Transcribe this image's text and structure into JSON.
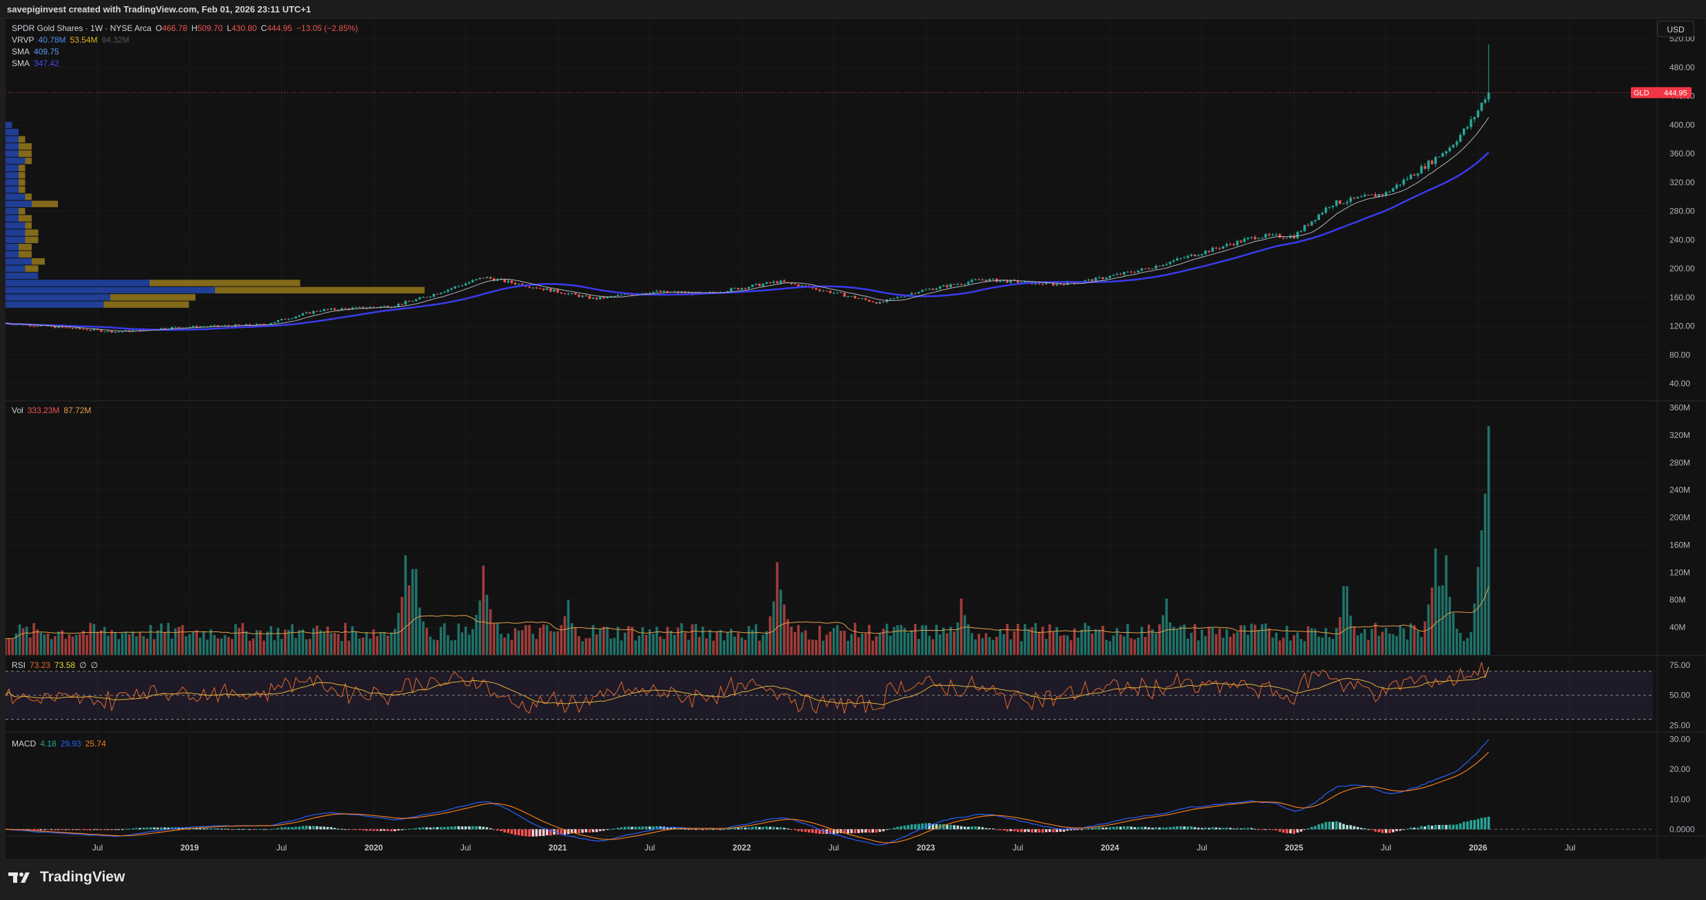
{
  "header": {
    "credit": "savepiginvest created with TradingView.com, Feb 01, 2026 23:11 UTC+1"
  },
  "currency_button": "USD",
  "legend": {
    "symbol": "SPDR Gold Shares · 1W · NYSE Arca",
    "ohlc": {
      "o_label": "O",
      "o": "466.78",
      "h_label": "H",
      "h": "509.70",
      "l_label": "L",
      "l": "430.80",
      "c_label": "C",
      "c": "444.95",
      "change": "−13.05 (−2.85%)"
    },
    "vrvp": {
      "label": "VRVP",
      "v1": "40.78M",
      "v2": "53.54M",
      "v3": "94.32M"
    },
    "sma1": {
      "label": "SMA",
      "value": "409.75"
    },
    "sma2": {
      "label": "SMA",
      "value": "347.42"
    }
  },
  "volume_legend": {
    "label": "Vol",
    "v1": "333.23M",
    "v2": "87.72M"
  },
  "rsi_legend": {
    "label": "RSI",
    "v1": "73.23",
    "v2": "73.58",
    "v3": "∅",
    "v4": "∅"
  },
  "macd_legend": {
    "label": "MACD",
    "v1": "4.18",
    "v2": "29.93",
    "v3": "25.74"
  },
  "price_tag": {
    "symbol": "GLD",
    "value": "444.95"
  },
  "branding": {
    "logo_text": "TradingView"
  },
  "colors": {
    "up": "#26a69a",
    "down": "#ef5350",
    "sma_fast": "#b2b5be",
    "sma_slow": "#3b3bf0",
    "vol_ma": "#e5a24a",
    "rsi_line": "#e56a2a",
    "rsi_ma": "#e5b43a",
    "macd": "#2962ff",
    "signal": "#f57c1f",
    "vrvp_up": "#2962ff",
    "vrvp_down": "#e0b020",
    "rsi_band": "#7e57c2"
  },
  "chart_data": [
    {
      "type": "candlestick",
      "title": "SPDR Gold Shares · 1W · NYSE Arca",
      "x_ticks": [
        "Jul",
        "2019",
        "Jul",
        "2020",
        "Jul",
        "2021",
        "Jul",
        "2022",
        "Jul",
        "2023",
        "Jul",
        "2024",
        "Jul",
        "2025",
        "Jul",
        "2026",
        "Jul"
      ],
      "y_ticks": [
        "40.00",
        "80.00",
        "120.00",
        "160.00",
        "200.00",
        "240.00",
        "280.00",
        "320.00",
        "360.00",
        "400.00",
        "440.00",
        "480.00",
        "520.00"
      ],
      "ylim": [
        18,
        548
      ],
      "last_price": 444.95,
      "close_anchors": {
        "x": [
          2018.0,
          2018.6,
          2018.9,
          2019.4,
          2019.7,
          2020.1,
          2020.25,
          2020.6,
          2020.8,
          2021.2,
          2021.5,
          2021.8,
          2022.2,
          2022.4,
          2022.75,
          2022.95,
          2023.3,
          2023.7,
          2023.9,
          2024.2,
          2024.4,
          2024.8,
          2025.0,
          2025.2,
          2025.5,
          2025.75,
          2025.85,
          2025.95,
          2026.0,
          2026.05
        ],
        "y": [
          124,
          112,
          118,
          122,
          142,
          148,
          158,
          188,
          178,
          158,
          168,
          165,
          182,
          172,
          152,
          168,
          185,
          178,
          184,
          200,
          215,
          245,
          245,
          290,
          305,
          350,
          370,
          400,
          420,
          445
        ]
      },
      "sma_fast_last": 409.75,
      "sma_slow_last": 347.42,
      "volume_profile": {
        "label": "VRVP",
        "rows": [
          {
            "price": 150,
            "up": 15,
            "down": 13
          },
          {
            "price": 160,
            "up": 16,
            "down": 13
          },
          {
            "price": 170,
            "up": 32,
            "down": 32
          },
          {
            "price": 180,
            "up": 22,
            "down": 23
          },
          {
            "price": 190,
            "up": 5,
            "down": 0
          },
          {
            "price": 200,
            "up": 3,
            "down": 2
          },
          {
            "price": 210,
            "up": 4,
            "down": 2
          },
          {
            "price": 220,
            "up": 2,
            "down": 2
          },
          {
            "price": 230,
            "up": 2,
            "down": 2
          },
          {
            "price": 240,
            "up": 3,
            "down": 2
          },
          {
            "price": 250,
            "up": 3,
            "down": 2
          },
          {
            "price": 260,
            "up": 3,
            "down": 1
          },
          {
            "price": 270,
            "up": 2,
            "down": 2
          },
          {
            "price": 280,
            "up": 2,
            "down": 1
          },
          {
            "price": 290,
            "up": 4,
            "down": 4
          },
          {
            "price": 300,
            "up": 3,
            "down": 1
          },
          {
            "price": 310,
            "up": 2,
            "down": 1
          },
          {
            "price": 320,
            "up": 2,
            "down": 1
          },
          {
            "price": 330,
            "up": 2,
            "down": 1
          },
          {
            "price": 340,
            "up": 2,
            "down": 1
          },
          {
            "price": 350,
            "up": 3,
            "down": 1
          },
          {
            "price": 360,
            "up": 2,
            "down": 2
          },
          {
            "price": 370,
            "up": 2,
            "down": 2
          },
          {
            "price": 380,
            "up": 2,
            "down": 1
          },
          {
            "price": 390,
            "up": 2,
            "down": 0
          },
          {
            "price": 400,
            "up": 1,
            "down": 0
          }
        ]
      }
    },
    {
      "type": "bar",
      "title": "Vol",
      "y_ticks": [
        "40M",
        "80M",
        "120M",
        "160M",
        "200M",
        "240M",
        "280M",
        "320M",
        "360M"
      ],
      "ylim": [
        0,
        365
      ],
      "base_level_M": 36,
      "spikes": [
        {
          "x": 2020.18,
          "value": 145
        },
        {
          "x": 2020.22,
          "value": 125
        },
        {
          "x": 2020.6,
          "value": 130
        },
        {
          "x": 2021.05,
          "value": 80
        },
        {
          "x": 2022.2,
          "value": 135
        },
        {
          "x": 2023.2,
          "value": 82
        },
        {
          "x": 2024.3,
          "value": 82
        },
        {
          "x": 2025.28,
          "value": 100
        },
        {
          "x": 2025.77,
          "value": 155
        },
        {
          "x": 2025.82,
          "value": 145
        },
        {
          "x": 2026.05,
          "value": 333.23
        }
      ],
      "ma_last": "87.72M"
    },
    {
      "type": "line",
      "title": "RSI",
      "y_ticks": [
        "25.00",
        "50.00",
        "75.00"
      ],
      "ylim": [
        20,
        82
      ],
      "bands": [
        30,
        50,
        70
      ],
      "rsi_last": 73.23,
      "ma_last": 73.58
    },
    {
      "type": "line",
      "title": "MACD",
      "y_ticks": [
        "0.0000",
        "10.00",
        "20.00",
        "30.00"
      ],
      "ylim": [
        -2,
        32
      ],
      "macd_last": 29.93,
      "signal_last": 25.74,
      "hist_last": 4.18
    }
  ]
}
